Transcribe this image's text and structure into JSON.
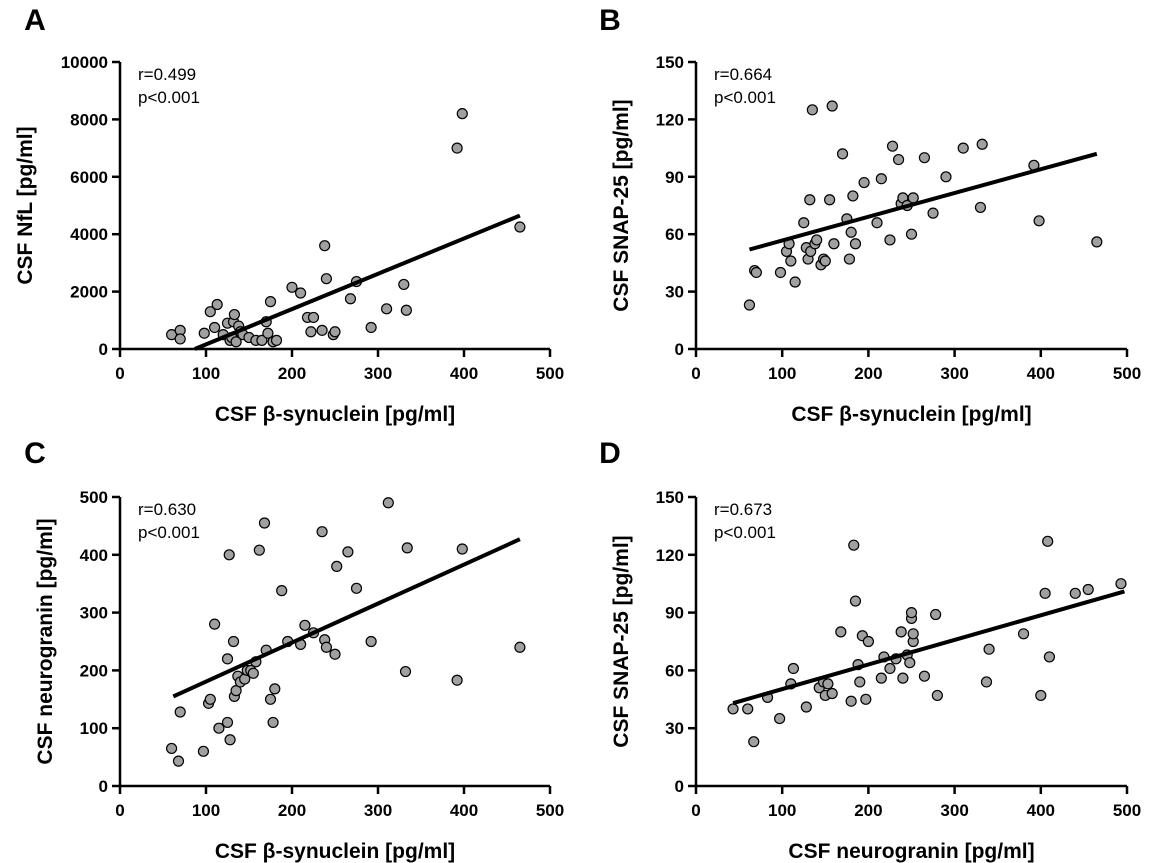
{
  "chart_data": [
    {
      "type": "scatter",
      "panel": "A",
      "xlabel": "CSF β-synuclein [pg/ml]",
      "ylabel": "CSF NfL [pg/ml]",
      "xlim": [
        0,
        500
      ],
      "ylim": [
        0,
        10000
      ],
      "xticks": [
        "0",
        "100",
        "200",
        "300",
        "400",
        "500"
      ],
      "yticks": [
        "0",
        "2000",
        "4000",
        "6000",
        "8000",
        "10000"
      ],
      "annotation": [
        "r=0.499",
        "p<0.001"
      ],
      "regression": [
        [
          87,
          0
        ],
        [
          465,
          4650
        ]
      ],
      "x": [
        60,
        70,
        70,
        98,
        105,
        110,
        113,
        120,
        125,
        128,
        130,
        132,
        133,
        135,
        138,
        140,
        143,
        150,
        158,
        165,
        170,
        172,
        175,
        178,
        182,
        200,
        210,
        218,
        222,
        225,
        235,
        238,
        240,
        248,
        250,
        268,
        275,
        292,
        310,
        330,
        333,
        392,
        398,
        465
      ],
      "y": [
        500,
        650,
        350,
        550,
        1300,
        750,
        1550,
        500,
        900,
        300,
        400,
        950,
        1200,
        250,
        800,
        600,
        500,
        400,
        300,
        300,
        950,
        550,
        1650,
        250,
        300,
        2150,
        1950,
        1100,
        600,
        1100,
        650,
        3600,
        2450,
        500,
        600,
        1750,
        2350,
        750,
        1400,
        2250,
        1350,
        7000,
        8200,
        4250
      ]
    },
    {
      "type": "scatter",
      "panel": "B",
      "xlabel": "CSF β-synuclein [pg/ml]",
      "ylabel": "CSF SNAP-25 [pg/ml]",
      "xlim": [
        0,
        500
      ],
      "ylim": [
        0,
        150
      ],
      "xticks": [
        "0",
        "100",
        "200",
        "300",
        "400",
        "500"
      ],
      "yticks": [
        "0",
        "30",
        "60",
        "90",
        "120",
        "150"
      ],
      "annotation": [
        "r=0.664",
        "p<0.001"
      ],
      "regression": [
        [
          62,
          52
        ],
        [
          465,
          102
        ]
      ],
      "x": [
        62,
        68,
        70,
        98,
        105,
        108,
        110,
        115,
        125,
        128,
        130,
        132,
        133,
        135,
        138,
        140,
        145,
        148,
        150,
        155,
        158,
        160,
        170,
        175,
        178,
        180,
        182,
        185,
        195,
        210,
        215,
        225,
        228,
        235,
        238,
        240,
        245,
        250,
        252,
        265,
        275,
        290,
        310,
        330,
        332,
        392,
        398,
        465
      ],
      "y": [
        23,
        41,
        40,
        40,
        51,
        55,
        46,
        35,
        66,
        53,
        47,
        78,
        51,
        125,
        55,
        57,
        44,
        47,
        46,
        78,
        127,
        55,
        102,
        68,
        47,
        61,
        80,
        55,
        87,
        66,
        89,
        57,
        106,
        99,
        76,
        79,
        75,
        60,
        79,
        100,
        71,
        90,
        105,
        74,
        107,
        96,
        67,
        56
      ]
    },
    {
      "type": "scatter",
      "panel": "C",
      "xlabel": "CSF β-synuclein [pg/ml]",
      "ylabel": "CSF neurogranin [pg/ml]",
      "xlim": [
        0,
        500
      ],
      "ylim": [
        0,
        500
      ],
      "xticks": [
        "0",
        "100",
        "200",
        "300",
        "400",
        "500"
      ],
      "yticks": [
        "0",
        "100",
        "200",
        "300",
        "400",
        "500"
      ],
      "annotation": [
        "r=0.630",
        "p<0.001"
      ],
      "regression": [
        [
          62,
          155
        ],
        [
          465,
          427
        ]
      ],
      "x": [
        60,
        68,
        70,
        97,
        103,
        105,
        110,
        115,
        125,
        125,
        127,
        128,
        132,
        133,
        135,
        137,
        140,
        145,
        148,
        152,
        155,
        158,
        162,
        168,
        170,
        175,
        178,
        180,
        188,
        195,
        210,
        215,
        225,
        235,
        238,
        240,
        250,
        252,
        265,
        275,
        292,
        312,
        332,
        334,
        392,
        398,
        465
      ],
      "y": [
        65,
        43,
        128,
        60,
        143,
        150,
        280,
        100,
        110,
        220,
        400,
        80,
        250,
        155,
        165,
        190,
        180,
        185,
        200,
        200,
        195,
        215,
        408,
        455,
        235,
        150,
        110,
        168,
        338,
        250,
        245,
        278,
        265,
        440,
        253,
        240,
        228,
        380,
        405,
        342,
        250,
        490,
        198,
        412,
        183,
        410,
        240
      ]
    },
    {
      "type": "scatter",
      "panel": "D",
      "xlabel": "CSF neurogranin [pg/ml]",
      "ylabel": "CSF SNAP-25 [pg/ml]",
      "xlim": [
        0,
        500
      ],
      "ylim": [
        0,
        150
      ],
      "xticks": [
        "0",
        "100",
        "200",
        "300",
        "400",
        "500"
      ],
      "yticks": [
        "0",
        "30",
        "60",
        "90",
        "120",
        "150"
      ],
      "annotation": [
        "r=0.673",
        "p<0.001"
      ],
      "regression": [
        [
          43,
          43
        ],
        [
          497,
          101
        ]
      ],
      "x": [
        43,
        60,
        67,
        83,
        97,
        110,
        113,
        128,
        143,
        148,
        150,
        153,
        158,
        168,
        180,
        183,
        185,
        188,
        190,
        193,
        197,
        200,
        215,
        218,
        225,
        232,
        238,
        240,
        245,
        248,
        250,
        250,
        252,
        252,
        265,
        278,
        280,
        337,
        340,
        380,
        400,
        405,
        408,
        410,
        440,
        455,
        493
      ],
      "y": [
        40,
        40,
        23,
        46,
        35,
        53,
        61,
        41,
        51,
        54,
        47,
        53,
        48,
        80,
        44,
        125,
        96,
        63,
        54,
        78,
        45,
        75,
        56,
        67,
        61,
        66,
        80,
        56,
        68,
        64,
        87,
        90,
        75,
        79,
        57,
        89,
        47,
        54,
        71,
        79,
        47,
        100,
        127,
        67,
        100,
        102,
        105
      ]
    }
  ]
}
